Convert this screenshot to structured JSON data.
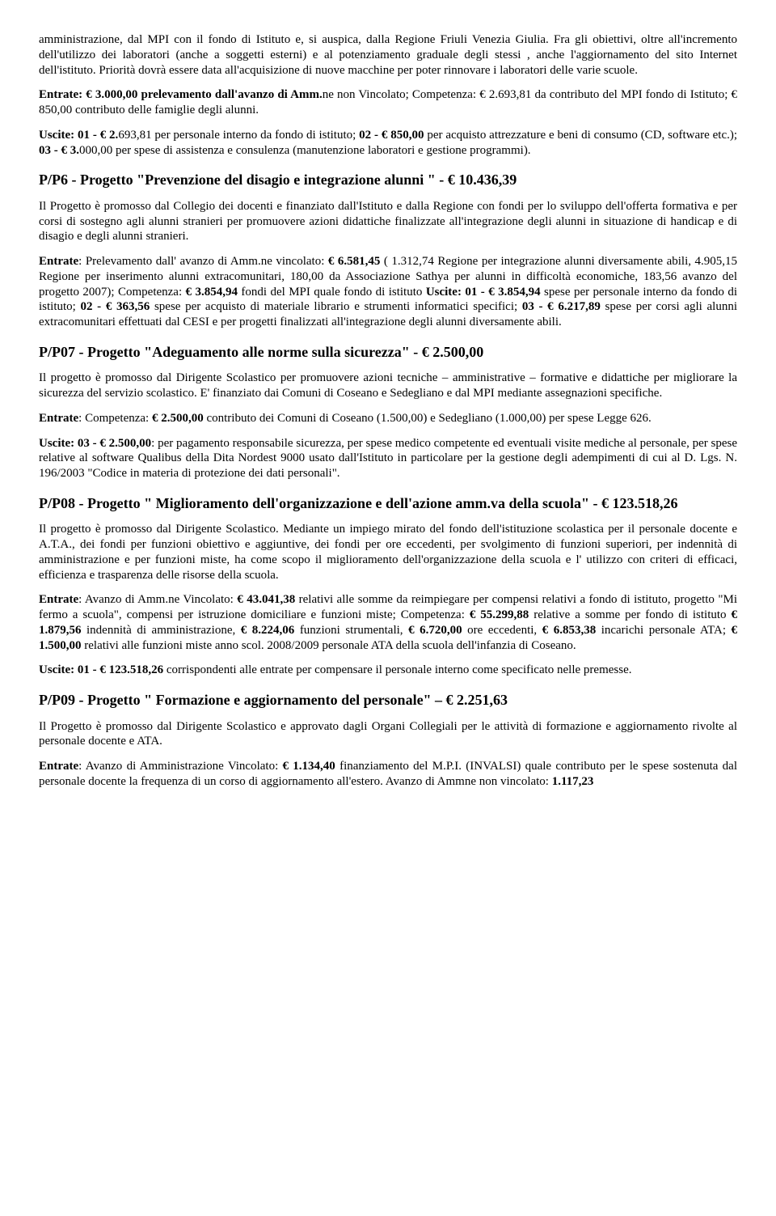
{
  "p1": "amministrazione, dal MPI con il fondo di Istituto e, si auspica, dalla Regione Friuli Venezia Giulia. Fra gli obiettivi, oltre all'incremento dell'utilizzo dei laboratori (anche a soggetti esterni) e al potenziamento graduale degli stessi , anche l'aggiornamento del sito Internet dell'istituto. Priorità dovrà essere data all'acquisizione di nuove macchine per poter rinnovare i laboratori delle varie scuole.",
  "p2a": "Entrate: € 3.000,00 prelevamento dall'avanzo di Amm.",
  "p2b": "ne non Vincolato; Competenza: € 2.693,81 da contributo del MPI fondo di Istituto; € 850,00 contributo delle famiglie degli alunni.",
  "p3a": "Uscite: 01 - € 2.",
  "p3b": "693,81 per personale interno da fondo di istituto;",
  "p3c": " 02 - € 850,00 ",
  "p3d": "per acquisto attrezzature e beni di consumo (CD, software etc.);",
  "p3e": " 03 - € 3.",
  "p3f": "000,00 per spese di assistenza e consulenza (manutenzione laboratori e gestione programmi).",
  "h1": "P/P6 - Progetto \"Prevenzione del disagio e integrazione alunni \" - € 10.436,39",
  "p4": "Il Progetto è promosso dal Collegio dei docenti e finanziato dall'Istituto e dalla Regione con fondi per lo sviluppo dell'offerta formativa e per corsi di sostegno agli alunni stranieri per promuovere azioni didattiche finalizzate all'integrazione degli alunni in situazione di handicap e di disagio e degli alunni stranieri.",
  "p5a": "Entrate",
  "p5b": ": Prelevamento dall' avanzo di Amm.ne vincolato: ",
  "p5c": "€ 6.581,45 ",
  "p5d": "( 1.312,74 Regione per integrazione alunni diversamente abili, 4.905,15 Regione per inserimento alunni extracomunitari, 180,00 da Associazione Sathya per alunni in difficoltà economiche, 183,56 avanzo del progetto 2007); Competenza: ",
  "p5e": "€ 3.854,94 ",
  "p5f": "fondi del MPI quale fondo di istituto ",
  "p5g": "Uscite: 01 - € 3.854,94 ",
  "p5h": " spese per personale interno da fondo di istituto; ",
  "p5i": "02 - € 363,56 ",
  "p5j": "spese per acquisto di materiale librario e strumenti informatici specifici; ",
  "p5k": "03 - € 6.217,89",
  "p5l": " spese per corsi agli alunni extracomunitari effettuati dal CESI e per progetti finalizzati all'integrazione degli alunni diversamente abili.",
  "h2": "P/P07 - Progetto \"Adeguamento alle norme sulla sicurezza\" - € 2.500,00",
  "p6": "Il progetto è promosso dal Dirigente Scolastico per promuovere azioni tecniche – amministrative – formative e didattiche per migliorare la sicurezza del servizio scolastico. E' finanziato dai Comuni di Coseano e Sedegliano e dal MPI mediante assegnazioni specifiche.",
  "p7a": "Entrate",
  "p7b": ": Competenza: ",
  "p7c": "€ 2.500,00",
  "p7d": " contributo dei Comuni di Coseano (1.500,00) e Sedegliano (1.000,00) per  spese Legge 626.",
  "p8a": "Uscite: 03 - € 2.500,00",
  "p8b": ": per pagamento responsabile sicurezza, per spese medico competente ed eventuali visite mediche al personale, per spese relative al software Qualibus della Dita Nordest 9000 usato dall'Istituto in particolare per la gestione degli adempimenti di cui al D. Lgs. N. 196/2003 \"Codice in materia di protezione dei dati personali\".",
  "h3": "P/P08 - Progetto \" Miglioramento dell'organizzazione e dell'azione amm.va della scuola\" - € 123.518,26",
  "p9": "Il progetto è promosso dal Dirigente Scolastico. Mediante un impiego mirato del fondo dell'istituzione scolastica per il personale docente e A.T.A., dei fondi per funzioni obiettivo e aggiuntive, dei fondi per ore eccedenti, per svolgimento di funzioni superiori, per indennità di amministrazione e per funzioni miste, ha come scopo il miglioramento dell'organizzazione della scuola e l' utilizzo con criteri di efficaci, efficienza e trasparenza  delle risorse della scuola.",
  "p10a": "Entrate",
  "p10b": ": Avanzo di Amm.ne Vincolato: ",
  "p10c": "€ 43.041,38",
  "p10d": " relativi alle somme da reimpiegare per compensi relativi a fondo di istituto, progetto \"Mi fermo a scuola\", compensi per istruzione domiciliare e funzioni miste; Competenza: ",
  "p10e": "€ 55.299,88",
  "p10f": " relative a somme per fondo di istituto ",
  "p10g": "€ 1.879,56",
  "p10h": " indennità di amministrazione, ",
  "p10i": "€ 8.224,06",
  "p10j": " funzioni strumentali, ",
  "p10k": "€ 6.720,00",
  "p10l": " ore eccedenti, ",
  "p10m": "€ 6.853,38",
  "p10n": " incarichi personale ATA; ",
  "p10o": "€ 1.500,00",
  "p10p": " relativi alle funzioni miste anno scol. 2008/2009 personale ATA della scuola dell'infanzia di Coseano.",
  "p11a": "Uscite:  01 - € 123.518,26 ",
  "p11b": "corrispondenti alle entrate per compensare il personale  interno come specificato nelle premesse.",
  "h4": "P/P09 - Progetto \" Formazione e aggiornamento del personale\" – € 2.251,63",
  "p12": "Il Progetto è promosso dal Dirigente Scolastico e approvato dagli Organi Collegiali per le attività di formazione e aggiornamento rivolte al personale docente e ATA.",
  "p13a": "Entrate",
  "p13b": ": Avanzo di Amministrazione Vincolato: ",
  "p13c": "€ 1.134,40",
  "p13d": " finanziamento del M.P.I. (INVALSI) quale contributo per le spese sostenuta dal personale docente la frequenza di un corso di  aggiornamento all'estero. Avanzo di Ammne non vincolato: ",
  "p13e": "1.117,23"
}
